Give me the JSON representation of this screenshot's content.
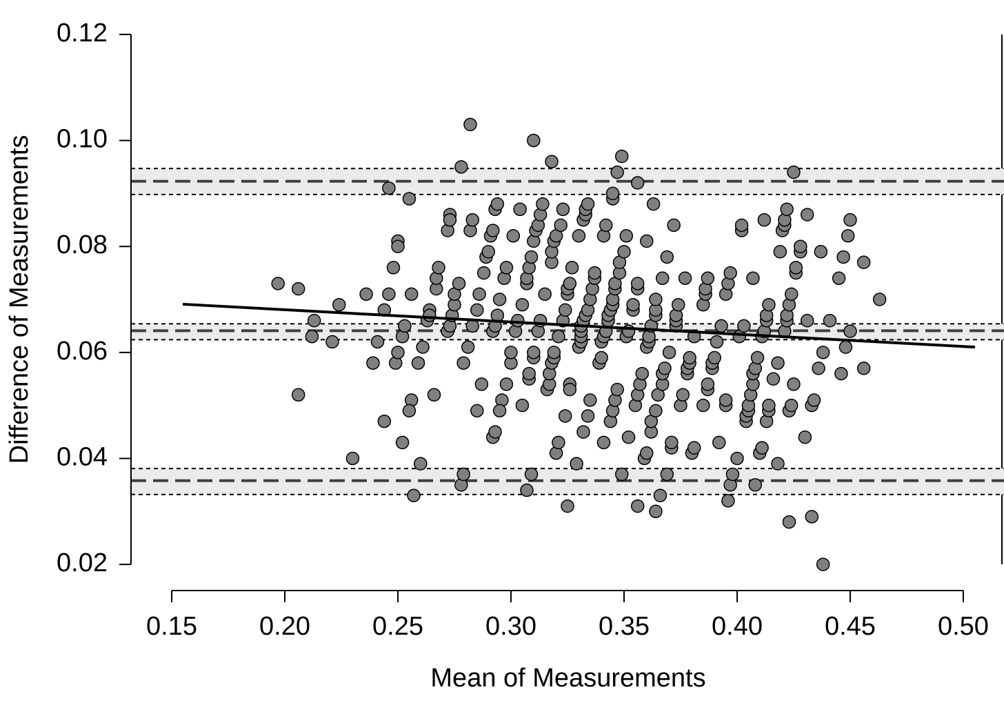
{
  "chart_data": {
    "type": "scatter",
    "x_label": "Mean of Measurements",
    "y_label": "Difference of Measurements",
    "xlim": [
      0.132,
      0.518
    ],
    "ylim": [
      0.0165,
      0.1265
    ],
    "xticks": [
      0.15,
      {
        "value": 0.2,
        "label": "0.20"
      },
      0.25,
      {
        "value": 0.3,
        "label": "0.30"
      },
      0.35,
      {
        "value": 0.4,
        "label": "0.40"
      },
      0.45,
      {
        "value": 0.5,
        "label": "0.50"
      }
    ],
    "yticks": [
      0.02,
      0.04,
      0.06,
      0.08,
      {
        "value": 0.1,
        "label": "0.10"
      },
      0.12
    ],
    "color": "#808080",
    "reference_lines": [
      {
        "value": 0.0923,
        "ci": [
          0.0898,
          0.0947
        ]
      },
      {
        "value": 0.0641,
        "ci": [
          0.0624,
          0.0654
        ]
      },
      {
        "value": 0.0358,
        "ci": [
          0.0332,
          0.0381
        ]
      }
    ],
    "fit_line": {
      "x": [
        0.1549,
        0.5052
      ],
      "values": [
        0.0691,
        0.061
      ]
    },
    "x": [
      0.197,
      0.206,
      0.206,
      0.213,
      0.212,
      0.221,
      0.224,
      0.23,
      0.236,
      0.239,
      0.241,
      0.244,
      0.244,
      0.246,
      0.246,
      0.248,
      0.249,
      0.25,
      0.25,
      0.25,
      0.252,
      0.253,
      0.252,
      0.255,
      0.256,
      0.256,
      0.255,
      0.257,
      0.259,
      0.261,
      0.26,
      0.263,
      0.264,
      0.264,
      0.266,
      0.267,
      0.267,
      0.268,
      0.272,
      0.273,
      0.272,
      0.273,
      0.273,
      0.274,
      0.275,
      0.275,
      0.277,
      0.278,
      0.278,
      0.279,
      0.279,
      0.281,
      0.282,
      0.282,
      0.283,
      0.283,
      0.285,
      0.285,
      0.286,
      0.287,
      0.288,
      0.289,
      0.29,
      0.291,
      0.292,
      0.292,
      0.293,
      0.294,
      0.293,
      0.294,
      0.292,
      0.293,
      0.295,
      0.296,
      0.295,
      0.297,
      0.298,
      0.298,
      0.3,
      0.3,
      0.301,
      0.302,
      0.303,
      0.304,
      0.305,
      0.305,
      0.307,
      0.307,
      0.307,
      0.308,
      0.308,
      0.308,
      0.309,
      0.309,
      0.31,
      0.31,
      0.31,
      0.31,
      0.311,
      0.312,
      0.312,
      0.313,
      0.313,
      0.314,
      0.315,
      0.316,
      0.317,
      0.318,
      0.318,
      0.318,
      0.317,
      0.318,
      0.319,
      0.319,
      0.319,
      0.32,
      0.32,
      0.321,
      0.321,
      0.322,
      0.323,
      0.323,
      0.324,
      0.324,
      0.325,
      0.325,
      0.325,
      0.326,
      0.326,
      0.326,
      0.327,
      0.329,
      0.33,
      0.33,
      0.331,
      0.331,
      0.331,
      0.331,
      0.332,
      0.332,
      0.332,
      0.333,
      0.333,
      0.333,
      0.334,
      0.334,
      0.334,
      0.335,
      0.335,
      0.336,
      0.337,
      0.337,
      0.339,
      0.34,
      0.34,
      0.341,
      0.341,
      0.341,
      0.342,
      0.342,
      0.343,
      0.343,
      0.344,
      0.344,
      0.345,
      0.345,
      0.345,
      0.345,
      0.345,
      0.346,
      0.346,
      0.346,
      0.347,
      0.347,
      0.348,
      0.348,
      0.349,
      0.349,
      0.35,
      0.351,
      0.351,
      0.352,
      0.352,
      0.354,
      0.354,
      0.355,
      0.356,
      0.356,
      0.356,
      0.356,
      0.356,
      0.357,
      0.358,
      0.359,
      0.36,
      0.36,
      0.36,
      0.361,
      0.361,
      0.362,
      0.362,
      0.362,
      0.363,
      0.364,
      0.364,
      0.364,
      0.364,
      0.364,
      0.365,
      0.366,
      0.367,
      0.367,
      0.367,
      0.368,
      0.369,
      0.369,
      0.37,
      0.371,
      0.371,
      0.372,
      0.373,
      0.373,
      0.373,
      0.374,
      0.375,
      0.376,
      0.377,
      0.378,
      0.378,
      0.379,
      0.379,
      0.38,
      0.381,
      0.381,
      0.385,
      0.385,
      0.386,
      0.386,
      0.387,
      0.387,
      0.387,
      0.389,
      0.389,
      0.39,
      0.391,
      0.392,
      0.393,
      0.395,
      0.395,
      0.395,
      0.396,
      0.396,
      0.397,
      0.397,
      0.398,
      0.4,
      0.401,
      0.402,
      0.402,
      0.403,
      0.404,
      0.404,
      0.405,
      0.405,
      0.406,
      0.407,
      0.407,
      0.407,
      0.408,
      0.408,
      0.409,
      0.41,
      0.411,
      0.411,
      0.412,
      0.412,
      0.413,
      0.413,
      0.413,
      0.414,
      0.414,
      0.414,
      0.416,
      0.418,
      0.419,
      0.418,
      0.42,
      0.421,
      0.421,
      0.421,
      0.422,
      0.422,
      0.422,
      0.423,
      0.423,
      0.423,
      0.424,
      0.424,
      0.425,
      0.425,
      0.426,
      0.426,
      0.428,
      0.428,
      0.43,
      0.431,
      0.431,
      0.433,
      0.433,
      0.434,
      0.436,
      0.437,
      0.438,
      0.438,
      0.441,
      0.445,
      0.446,
      0.447,
      0.448,
      0.449,
      0.45,
      0.45,
      0.456,
      0.456,
      0.463
    ],
    "values": [
      0.073,
      0.072,
      0.052,
      0.066,
      0.063,
      0.062,
      0.069,
      0.04,
      0.071,
      0.058,
      0.062,
      0.047,
      0.068,
      0.091,
      0.071,
      0.076,
      0.058,
      0.06,
      0.081,
      0.08,
      0.063,
      0.065,
      0.043,
      0.089,
      0.071,
      0.051,
      0.049,
      0.033,
      0.058,
      0.061,
      0.039,
      0.066,
      0.068,
      0.067,
      0.052,
      0.072,
      0.074,
      0.076,
      0.064,
      0.065,
      0.083,
      0.086,
      0.085,
      0.067,
      0.069,
      0.071,
      0.073,
      0.095,
      0.035,
      0.037,
      0.058,
      0.061,
      0.103,
      0.083,
      0.085,
      0.065,
      0.068,
      0.049,
      0.071,
      0.054,
      0.075,
      0.078,
      0.079,
      0.082,
      0.083,
      0.064,
      0.065,
      0.067,
      0.087,
      0.088,
      0.044,
      0.045,
      0.07,
      0.051,
      0.049,
      0.074,
      0.076,
      0.054,
      0.058,
      0.06,
      0.082,
      0.064,
      0.066,
      0.087,
      0.069,
      0.05,
      0.073,
      0.074,
      0.034,
      0.055,
      0.056,
      0.076,
      0.037,
      0.078,
      0.1,
      0.059,
      0.06,
      0.081,
      0.083,
      0.084,
      0.064,
      0.086,
      0.066,
      0.088,
      0.071,
      0.053,
      0.054,
      0.096,
      0.077,
      0.079,
      0.056,
      0.058,
      0.081,
      0.059,
      0.06,
      0.082,
      0.041,
      0.043,
      0.063,
      0.084,
      0.087,
      0.066,
      0.048,
      0.068,
      0.031,
      0.071,
      0.072,
      0.073,
      0.054,
      0.053,
      0.076,
      0.039,
      0.061,
      0.082,
      0.062,
      0.063,
      0.064,
      0.065,
      0.066,
      0.045,
      0.085,
      0.086,
      0.067,
      0.087,
      0.088,
      0.068,
      0.048,
      0.07,
      0.051,
      0.072,
      0.074,
      0.075,
      0.058,
      0.059,
      0.062,
      0.082,
      0.043,
      0.063,
      0.064,
      0.084,
      0.066,
      0.067,
      0.047,
      0.068,
      0.069,
      0.049,
      0.089,
      0.09,
      0.07,
      0.051,
      0.072,
      0.073,
      0.053,
      0.094,
      0.075,
      0.077,
      0.097,
      0.037,
      0.079,
      0.082,
      0.063,
      0.064,
      0.044,
      0.068,
      0.069,
      0.05,
      0.092,
      0.072,
      0.073,
      0.031,
      0.052,
      0.054,
      0.056,
      0.04,
      0.041,
      0.061,
      0.081,
      0.062,
      0.063,
      0.065,
      0.045,
      0.047,
      0.088,
      0.067,
      0.049,
      0.068,
      0.07,
      0.03,
      0.052,
      0.033,
      0.074,
      0.054,
      0.056,
      0.057,
      0.037,
      0.078,
      0.06,
      0.042,
      0.043,
      0.084,
      0.065,
      0.066,
      0.067,
      0.069,
      0.05,
      0.052,
      0.074,
      0.056,
      0.057,
      0.058,
      0.059,
      0.041,
      0.042,
      0.063,
      0.069,
      0.05,
      0.071,
      0.072,
      0.074,
      0.053,
      0.054,
      0.057,
      0.058,
      0.059,
      0.062,
      0.043,
      0.065,
      0.05,
      0.051,
      0.071,
      0.032,
      0.073,
      0.075,
      0.035,
      0.037,
      0.04,
      0.063,
      0.083,
      0.084,
      0.065,
      0.047,
      0.048,
      0.049,
      0.05,
      0.052,
      0.074,
      0.054,
      0.056,
      0.035,
      0.057,
      0.059,
      0.041,
      0.042,
      0.063,
      0.064,
      0.085,
      0.066,
      0.067,
      0.047,
      0.069,
      0.049,
      0.05,
      0.055,
      0.058,
      0.079,
      0.039,
      0.083,
      0.084,
      0.064,
      0.085,
      0.066,
      0.067,
      0.087,
      0.069,
      0.028,
      0.049,
      0.05,
      0.071,
      0.094,
      0.054,
      0.075,
      0.076,
      0.079,
      0.08,
      0.044,
      0.086,
      0.066,
      0.029,
      0.05,
      0.051,
      0.057,
      0.079,
      0.06,
      0.02,
      0.066,
      0.074,
      0.056,
      0.078,
      0.061,
      0.082,
      0.064,
      0.085,
      0.077,
      0.057,
      0.07
    ]
  }
}
